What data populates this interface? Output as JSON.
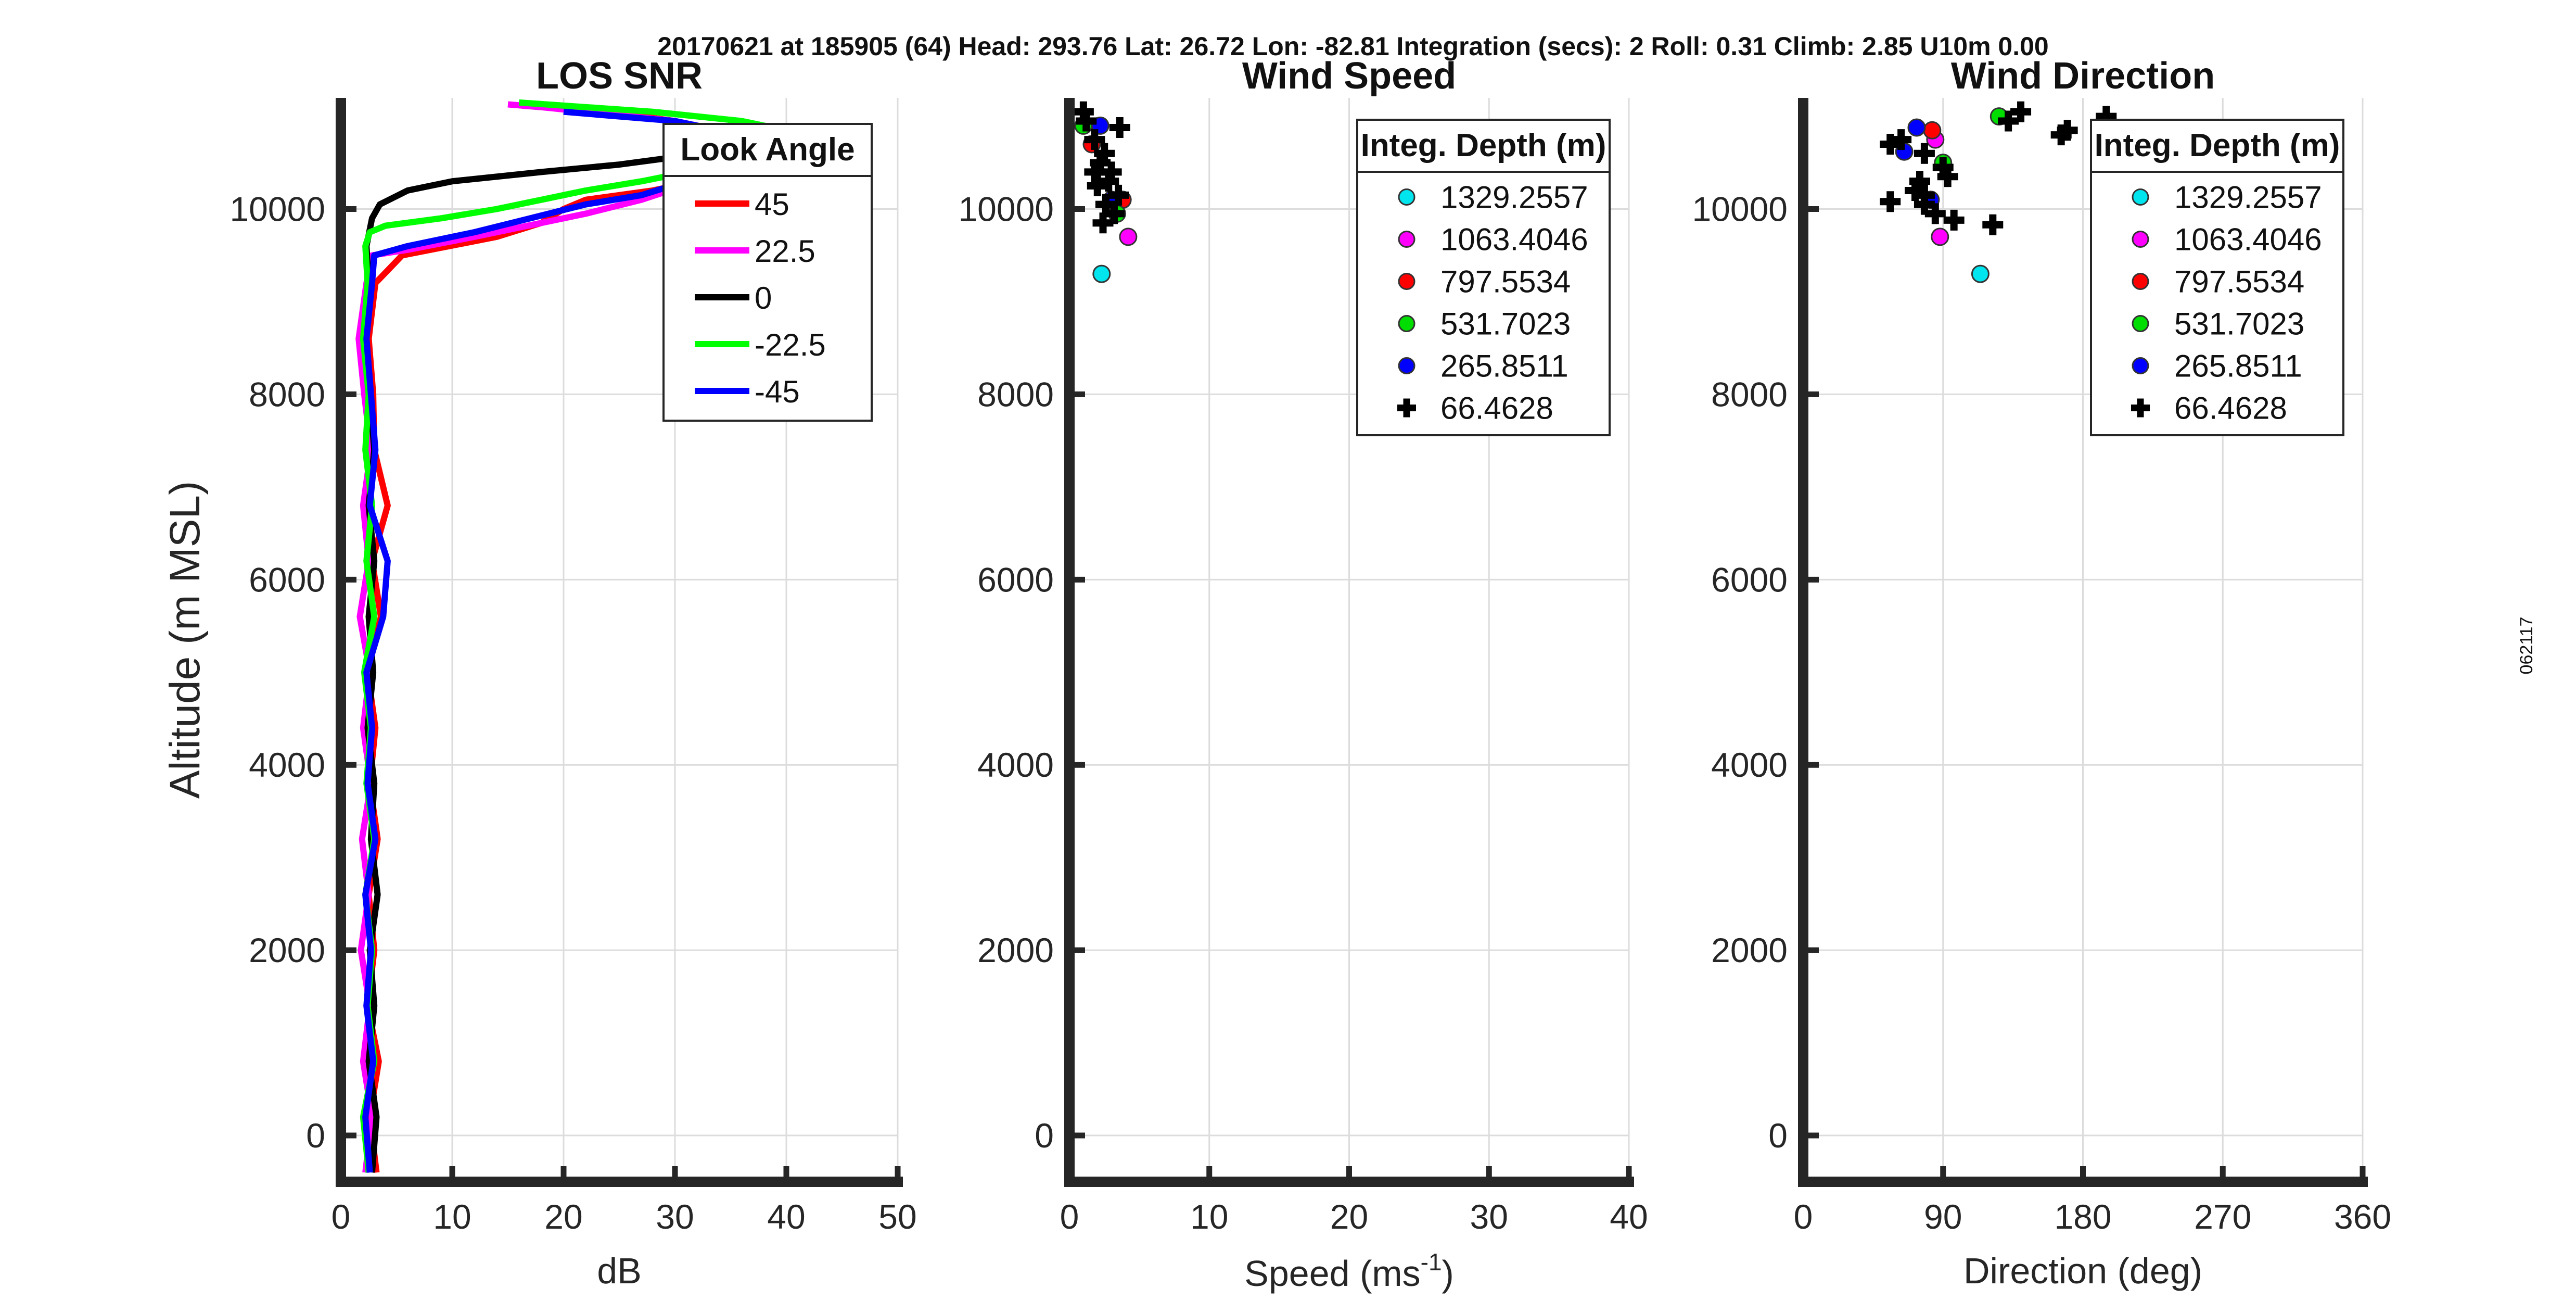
{
  "figure": {
    "suptitle": "20170621 at 185905 (64)  Head: 293.76  Lat: 26.72  Lon: -82.81  Integration (secs): 2  Roll: 0.31  Climb: 2.85  U10m 0.00",
    "side_stamp": "062117"
  },
  "chart_data": [
    {
      "type": "line",
      "title": "LOS SNR",
      "xlabel": "dB",
      "ylabel": "Altitude (m MSL)",
      "xlim": [
        0,
        50
      ],
      "ylim": [
        -500,
        11200
      ],
      "xticks": [
        0,
        10,
        20,
        30,
        40,
        50
      ],
      "yticks": [
        0,
        2000,
        4000,
        6000,
        8000,
        10000
      ],
      "grid": true,
      "legend": {
        "title": "Look Angle",
        "position": "top-right"
      },
      "series": [
        {
          "name": "45",
          "color": "#ff0000",
          "points": [
            [
              3.2,
              -400
            ],
            [
              2.6,
              200
            ],
            [
              3.4,
              800
            ],
            [
              2.4,
              1400
            ],
            [
              3.0,
              2000
            ],
            [
              2.5,
              2600
            ],
            [
              3.3,
              3200
            ],
            [
              2.6,
              3800
            ],
            [
              3.1,
              4400
            ],
            [
              2.4,
              5000
            ],
            [
              3.6,
              5600
            ],
            [
              2.8,
              6200
            ],
            [
              4.2,
              6800
            ],
            [
              3.0,
              7400
            ],
            [
              2.9,
              8000
            ],
            [
              2.5,
              8600
            ],
            [
              3.1,
              9200
            ],
            [
              5.5,
              9500
            ],
            [
              14,
              9700
            ],
            [
              18,
              9850
            ],
            [
              20,
              10000
            ],
            [
              22,
              10100
            ],
            [
              28,
              10200
            ],
            [
              32,
              10300
            ],
            [
              40,
              10500
            ],
            [
              35,
              10800
            ],
            [
              30,
              10950
            ],
            [
              24,
              11050
            ],
            [
              20,
              11080
            ],
            [
              16,
              11120
            ]
          ]
        },
        {
          "name": "22.5",
          "color": "#ff00ff",
          "points": [
            [
              2.2,
              -400
            ],
            [
              2.8,
              200
            ],
            [
              2.0,
              800
            ],
            [
              2.6,
              1400
            ],
            [
              1.8,
              2000
            ],
            [
              2.5,
              2600
            ],
            [
              1.9,
              3200
            ],
            [
              2.7,
              3800
            ],
            [
              2.0,
              4400
            ],
            [
              2.6,
              5000
            ],
            [
              1.7,
              5600
            ],
            [
              2.5,
              6200
            ],
            [
              2.0,
              6800
            ],
            [
              2.7,
              7400
            ],
            [
              2.1,
              8000
            ],
            [
              1.6,
              8600
            ],
            [
              2.3,
              9200
            ],
            [
              2.8,
              9500
            ],
            [
              6,
              9560
            ],
            [
              12,
              9700
            ],
            [
              18,
              9850
            ],
            [
              22,
              9950
            ],
            [
              27,
              10100
            ],
            [
              32,
              10300
            ],
            [
              38,
              10550
            ],
            [
              34,
              10850
            ],
            [
              30,
              10950
            ],
            [
              22,
              11050
            ],
            [
              18,
              11100
            ],
            [
              15,
              11130
            ]
          ]
        },
        {
          "name": "0",
          "color": "#000000",
          "points": [
            [
              2.8,
              -400
            ],
            [
              3.2,
              200
            ],
            [
              2.5,
              800
            ],
            [
              3.0,
              1400
            ],
            [
              2.6,
              2000
            ],
            [
              3.3,
              2600
            ],
            [
              2.7,
              3200
            ],
            [
              3.0,
              3800
            ],
            [
              2.4,
              4400
            ],
            [
              2.9,
              5000
            ],
            [
              2.5,
              5600
            ],
            [
              3.0,
              6200
            ],
            [
              2.5,
              6800
            ],
            [
              3.0,
              7400
            ],
            [
              2.6,
              8000
            ],
            [
              2.2,
              8600
            ],
            [
              2.5,
              9200
            ],
            [
              2.3,
              9600
            ],
            [
              2.8,
              9900
            ],
            [
              3.5,
              10050
            ],
            [
              6,
              10200
            ],
            [
              10,
              10300
            ],
            [
              18,
              10400
            ],
            [
              25,
              10480
            ],
            [
              30,
              10560
            ],
            [
              34,
              10650
            ],
            [
              36,
              10720
            ]
          ]
        },
        {
          "name": "-22.5",
          "color": "#00ff00",
          "points": [
            [
              2.5,
              -400
            ],
            [
              2.0,
              200
            ],
            [
              3.0,
              800
            ],
            [
              2.4,
              1400
            ],
            [
              2.8,
              2000
            ],
            [
              2.2,
              2600
            ],
            [
              3.0,
              3200
            ],
            [
              2.3,
              3800
            ],
            [
              2.7,
              4400
            ],
            [
              2.1,
              5000
            ],
            [
              3.0,
              5600
            ],
            [
              2.3,
              6200
            ],
            [
              2.8,
              6800
            ],
            [
              2.2,
              7400
            ],
            [
              2.5,
              8000
            ],
            [
              2.0,
              8600
            ],
            [
              2.4,
              9200
            ],
            [
              2.2,
              9600
            ],
            [
              2.6,
              9750
            ],
            [
              4,
              9820
            ],
            [
              9,
              9900
            ],
            [
              14,
              10000
            ],
            [
              18,
              10100
            ],
            [
              22,
              10200
            ],
            [
              27,
              10300
            ],
            [
              32,
              10420
            ],
            [
              38,
              10600
            ],
            [
              42,
              10800
            ],
            [
              36,
              10950
            ],
            [
              28,
              11050
            ],
            [
              22,
              11100
            ],
            [
              16,
              11150
            ]
          ]
        },
        {
          "name": "-45",
          "color": "#0000ff",
          "points": [
            [
              2.6,
              -400
            ],
            [
              2.2,
              200
            ],
            [
              2.9,
              800
            ],
            [
              2.3,
              1400
            ],
            [
              2.7,
              2000
            ],
            [
              2.2,
              2600
            ],
            [
              3.1,
              3200
            ],
            [
              2.4,
              3800
            ],
            [
              2.8,
              4400
            ],
            [
              2.3,
              5000
            ],
            [
              3.8,
              5600
            ],
            [
              4.2,
              6200
            ],
            [
              2.6,
              6800
            ],
            [
              3.1,
              7400
            ],
            [
              2.7,
              8000
            ],
            [
              2.3,
              8600
            ],
            [
              2.8,
              9200
            ],
            [
              3.0,
              9500
            ],
            [
              6,
              9600
            ],
            [
              12,
              9750
            ],
            [
              17,
              9900
            ],
            [
              22,
              10050
            ],
            [
              27,
              10150
            ],
            [
              31,
              10300
            ],
            [
              39,
              10500
            ],
            [
              36,
              10800
            ],
            [
              30,
              10950
            ],
            [
              25,
              11000
            ],
            [
              20,
              11050
            ]
          ]
        }
      ]
    },
    {
      "type": "scatter",
      "title": "Wind Speed",
      "xlabel": "Speed (ms",
      "xlabel_sup": "-1",
      "xlabel_end": ")",
      "xlim": [
        0,
        40
      ],
      "ylim": [
        -500,
        11200
      ],
      "xticks": [
        0,
        10,
        20,
        30,
        40
      ],
      "yticks": [
        0,
        2000,
        4000,
        6000,
        8000,
        10000
      ],
      "grid": true,
      "legend": {
        "title": "Integ. Depth (m)",
        "position": "top-right"
      },
      "series": [
        {
          "name": "1329.2557",
          "color": "#00e5ee",
          "marker": "circle",
          "points": [
            [
              2.3,
              9300
            ]
          ]
        },
        {
          "name": "1063.4046",
          "color": "#ff00ff",
          "marker": "circle",
          "points": [
            [
              4.2,
              9700
            ]
          ]
        },
        {
          "name": "797.5534",
          "color": "#ff0000",
          "marker": "circle",
          "points": [
            [
              1.6,
              10700
            ],
            [
              3.8,
              10100
            ]
          ]
        },
        {
          "name": "531.7023",
          "color": "#00dd00",
          "marker": "circle",
          "points": [
            [
              1.0,
              10900
            ],
            [
              3.4,
              9950
            ]
          ]
        },
        {
          "name": "265.8511",
          "color": "#0000ff",
          "marker": "circle",
          "points": [
            [
              2.2,
              10900
            ],
            [
              3.0,
              10100
            ]
          ]
        },
        {
          "name": "66.4628",
          "color": "#000000",
          "marker": "plus",
          "points": [
            [
              1.0,
              11050
            ],
            [
              1.2,
              10950
            ],
            [
              1.8,
              10750
            ],
            [
              2.5,
              10600
            ],
            [
              2.2,
              10500
            ],
            [
              3.0,
              10400
            ],
            [
              2.8,
              10300
            ],
            [
              2.0,
              10250
            ],
            [
              3.5,
              10150
            ],
            [
              2.6,
              10050
            ],
            [
              3.2,
              9950
            ],
            [
              2.4,
              9850
            ],
            [
              1.8,
              10400
            ],
            [
              3.6,
              10880
            ]
          ]
        }
      ]
    },
    {
      "type": "scatter",
      "title": "Wind Direction",
      "xlabel": "Direction (deg)",
      "xlim": [
        0,
        360
      ],
      "ylim": [
        -500,
        11200
      ],
      "xticks": [
        0,
        90,
        180,
        270,
        360
      ],
      "yticks": [
        0,
        2000,
        4000,
        6000,
        8000,
        10000
      ],
      "grid": true,
      "legend": {
        "title": "Integ. Depth (m)",
        "position": "top-right"
      },
      "series": [
        {
          "name": "1329.2557",
          "color": "#00e5ee",
          "marker": "circle",
          "points": [
            [
              114,
              9300
            ]
          ]
        },
        {
          "name": "1063.4046",
          "color": "#ff00ff",
          "marker": "circle",
          "points": [
            [
              88,
              9700
            ],
            [
              85,
              10750
            ]
          ]
        },
        {
          "name": "797.5534",
          "color": "#ff0000",
          "marker": "circle",
          "points": [
            [
              83,
              10850
            ]
          ]
        },
        {
          "name": "531.7023",
          "color": "#00dd00",
          "marker": "circle",
          "points": [
            [
              126,
              11000
            ],
            [
              90,
              10500
            ]
          ]
        },
        {
          "name": "265.8511",
          "color": "#0000ff",
          "marker": "circle",
          "points": [
            [
              73,
              10880
            ],
            [
              65,
              10620
            ],
            [
              82,
              10100
            ]
          ]
        },
        {
          "name": "66.4628",
          "color": "#000000",
          "marker": "plus",
          "points": [
            [
              56,
              10700
            ],
            [
              63,
              10750
            ],
            [
              78,
              10600
            ],
            [
              90,
              10450
            ],
            [
              75,
              10300
            ],
            [
              72,
              10200
            ],
            [
              93,
              10350
            ],
            [
              78,
              10050
            ],
            [
              56,
              10080
            ],
            [
              85,
              9950
            ],
            [
              97,
              9880
            ],
            [
              122,
              9830
            ],
            [
              132,
              10950
            ],
            [
              140,
              11050
            ],
            [
              166,
              10800
            ],
            [
              170,
              10850
            ],
            [
              195,
              11000
            ],
            [
              78,
              10150
            ]
          ]
        }
      ]
    }
  ]
}
